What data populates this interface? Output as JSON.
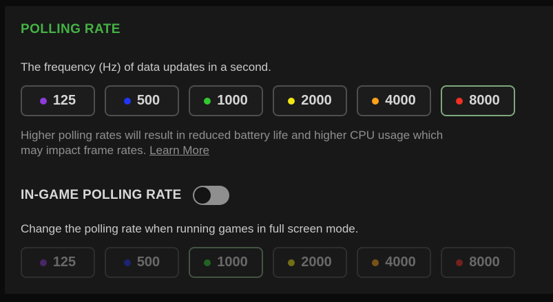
{
  "theme": {
    "accent_green": "#44b244",
    "selected_border": "#7fa87f",
    "panel_bg": "#181818"
  },
  "polling_rate": {
    "title": "POLLING RATE",
    "description": "The frequency (Hz) of data updates in a second.",
    "options": [
      {
        "label": "125",
        "dot_color": "#8e3bdb",
        "selected": false
      },
      {
        "label": "500",
        "dot_color": "#2236f2",
        "selected": false
      },
      {
        "label": "1000",
        "dot_color": "#31c831",
        "selected": false
      },
      {
        "label": "2000",
        "dot_color": "#f0e515",
        "selected": false
      },
      {
        "label": "4000",
        "dot_color": "#ffa21a",
        "selected": false
      },
      {
        "label": "8000",
        "dot_color": "#f03022",
        "selected": true
      }
    ],
    "note_line1": "Higher polling rates will result in reduced battery life and higher CPU usage which",
    "note_line2": "may impact frame rates.",
    "learn_more_label": "Learn More"
  },
  "in_game_polling_rate": {
    "title": "IN-GAME POLLING RATE",
    "toggle_state": "off",
    "enabled": false,
    "description": "Change the polling rate when running games in full screen mode.",
    "options": [
      {
        "label": "125",
        "dot_color": "#8e3bdb",
        "selected": false
      },
      {
        "label": "500",
        "dot_color": "#2236f2",
        "selected": false
      },
      {
        "label": "1000",
        "dot_color": "#31c831",
        "selected": true
      },
      {
        "label": "2000",
        "dot_color": "#f0e515",
        "selected": false
      },
      {
        "label": "4000",
        "dot_color": "#ffa21a",
        "selected": false
      },
      {
        "label": "8000",
        "dot_color": "#f03022",
        "selected": false
      }
    ]
  }
}
